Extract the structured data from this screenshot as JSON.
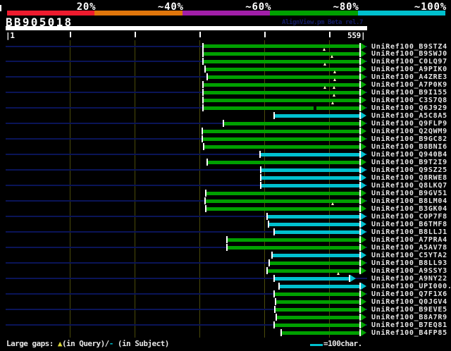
{
  "header": {
    "watermark": "AlignView.pm Beta rel.7"
  },
  "scale_legend": {
    "segments": [
      {
        "label": "20%",
        "color": "#ee1b2e"
      },
      {
        "label": "~40%",
        "color": "#e0760b"
      },
      {
        "label": "~60%",
        "color": "#a11ea8"
      },
      {
        "label": "~80%",
        "color": "#00a000"
      },
      {
        "label": "~100%",
        "color": "#00c0ce"
      }
    ]
  },
  "footer": {
    "gap_note_prefix": "Large gaps: ",
    "gap_query_symbol": "▲",
    "gap_note_mid": "(in Query)/",
    "gap_subject_symbol": "-",
    "gap_note_suffix": " (in Subject)",
    "scale_note": "=100char."
  },
  "colors": {
    "background": "#000000",
    "query_bar": "#ffffff",
    "bar_green": "#00a000",
    "bar_cyan": "#00c0ce",
    "connector_navy": "#0a1457",
    "gridline": "#4a4a0a",
    "gap_marker": "#ffffc0"
  },
  "chart_data": {
    "type": "alignment-overview",
    "query": {
      "name": "BB905018",
      "length": 559,
      "start_label": "1",
      "end_label": "559"
    },
    "ruler_tick_interval": 100,
    "identity_bins": [
      "20%",
      "~40%",
      "~60%",
      "~80%",
      "~100%"
    ],
    "hits": [
      {
        "id": "UniRef100_B9STZ4",
        "qstart": 307,
        "qend": 559,
        "bin": "~80%",
        "query_gaps": [
          493
        ],
        "subject_gaps": []
      },
      {
        "id": "UniRef100_B9SWJ0",
        "qstart": 307,
        "qend": 559,
        "bin": "~80%",
        "query_gaps": [
          505
        ],
        "subject_gaps": []
      },
      {
        "id": "UniRef100_C0LQ97",
        "qstart": 307,
        "qend": 559,
        "bin": "~80%",
        "query_gaps": [
          494
        ],
        "subject_gaps": []
      },
      {
        "id": "UniRef100_A9PIK0",
        "qstart": 310,
        "qend": 559,
        "bin": "~80%",
        "query_gaps": [
          509
        ],
        "subject_gaps": []
      },
      {
        "id": "UniRef100_A4ZRE3",
        "qstart": 313,
        "qend": 559,
        "bin": "~80%",
        "query_gaps": [
          509
        ],
        "subject_gaps": []
      },
      {
        "id": "UniRef100_A7P0K9",
        "qstart": 307,
        "qend": 559,
        "bin": "~80%",
        "query_gaps": [
          494,
          508
        ],
        "subject_gaps": []
      },
      {
        "id": "UniRef100_B9I155",
        "qstart": 307,
        "qend": 559,
        "bin": "~80%",
        "query_gaps": [
          508
        ],
        "subject_gaps": []
      },
      {
        "id": "UniRef100_C3S7Q8",
        "qstart": 307,
        "qend": 559,
        "bin": "~80%",
        "query_gaps": [
          506
        ],
        "subject_gaps": []
      },
      {
        "id": "UniRef100_Q6J929",
        "qstart": 307,
        "qend": 559,
        "bin": "~80%",
        "query_gaps": [],
        "subject_gaps": [
          478
        ]
      },
      {
        "id": "UniRef100_A5C8A5",
        "qstart": 417,
        "qend": 559,
        "bin": "~100%",
        "query_gaps": [],
        "subject_gaps": []
      },
      {
        "id": "UniRef100_Q9FLP9",
        "qstart": 338,
        "qend": 559,
        "bin": "~80%",
        "query_gaps": [],
        "subject_gaps": []
      },
      {
        "id": "UniRef100_Q2QWM9",
        "qstart": 306,
        "qend": 559,
        "bin": "~80%",
        "query_gaps": [],
        "subject_gaps": []
      },
      {
        "id": "UniRef100_B9GC82",
        "qstart": 306,
        "qend": 559,
        "bin": "~80%",
        "query_gaps": [],
        "subject_gaps": []
      },
      {
        "id": "UniRef100_B8BNI6",
        "qstart": 308,
        "qend": 559,
        "bin": "~80%",
        "query_gaps": [],
        "subject_gaps": []
      },
      {
        "id": "UniRef100_Q940B4",
        "qstart": 395,
        "qend": 559,
        "bin": "~100%",
        "query_gaps": [],
        "subject_gaps": []
      },
      {
        "id": "UniRef100_B9T2I9",
        "qstart": 313,
        "qend": 559,
        "bin": "~80%",
        "query_gaps": [],
        "subject_gaps": []
      },
      {
        "id": "UniRef100_Q9SZ25",
        "qstart": 396,
        "qend": 559,
        "bin": "~100%",
        "query_gaps": [],
        "subject_gaps": []
      },
      {
        "id": "UniRef100_Q8RWE8",
        "qstart": 396,
        "qend": 559,
        "bin": "~100%",
        "query_gaps": [],
        "subject_gaps": []
      },
      {
        "id": "UniRef100_Q8LKQ7",
        "qstart": 396,
        "qend": 559,
        "bin": "~100%",
        "query_gaps": [],
        "subject_gaps": []
      },
      {
        "id": "UniRef100_B9GV51",
        "qstart": 311,
        "qend": 559,
        "bin": "~80%",
        "query_gaps": [],
        "subject_gaps": []
      },
      {
        "id": "UniRef100_B8LM04",
        "qstart": 310,
        "qend": 559,
        "bin": "~80%",
        "query_gaps": [
          506
        ],
        "subject_gaps": []
      },
      {
        "id": "UniRef100_B3GK04",
        "qstart": 311,
        "qend": 559,
        "bin": "~80%",
        "query_gaps": [],
        "subject_gaps": []
      },
      {
        "id": "UniRef100_C0P7F8",
        "qstart": 406,
        "qend": 559,
        "bin": "~100%",
        "query_gaps": [],
        "subject_gaps": []
      },
      {
        "id": "UniRef100_B6TMF8",
        "qstart": 408,
        "qend": 559,
        "bin": "~100%",
        "query_gaps": [],
        "subject_gaps": []
      },
      {
        "id": "UniRef100_B8LLJ1",
        "qstart": 417,
        "qend": 559,
        "bin": "~100%",
        "query_gaps": [],
        "subject_gaps": []
      },
      {
        "id": "UniRef100_A7PRA4",
        "qstart": 344,
        "qend": 559,
        "bin": "~80%",
        "query_gaps": [],
        "subject_gaps": []
      },
      {
        "id": "UniRef100_A5AV78",
        "qstart": 344,
        "qend": 559,
        "bin": "~80%",
        "query_gaps": [],
        "subject_gaps": []
      },
      {
        "id": "UniRef100_C5YTA2",
        "qstart": 413,
        "qend": 559,
        "bin": "~100%",
        "query_gaps": [],
        "subject_gaps": []
      },
      {
        "id": "UniRef100_B8LL93",
        "qstart": 409,
        "qend": 559,
        "bin": "~80%",
        "query_gaps": [],
        "subject_gaps": []
      },
      {
        "id": "UniRef100_A9SSY3",
        "qstart": 406,
        "qend": 559,
        "bin": "~80%",
        "query_gaps": [
          515
        ],
        "subject_gaps": []
      },
      {
        "id": "UniRef100_A9NY22",
        "qstart": 417,
        "qend": 543,
        "bin": "~100%",
        "query_gaps": [],
        "subject_gaps": []
      },
      {
        "id": "UniRef100_UPI000..",
        "qstart": 424,
        "qend": 559,
        "bin": "~100%",
        "query_gaps": [],
        "subject_gaps": []
      },
      {
        "id": "UniRef100_Q7F1X6",
        "qstart": 417,
        "qend": 559,
        "bin": "~80%",
        "query_gaps": [],
        "subject_gaps": []
      },
      {
        "id": "UniRef100_Q0JGV4",
        "qstart": 419,
        "qend": 559,
        "bin": "~80%",
        "query_gaps": [],
        "subject_gaps": []
      },
      {
        "id": "UniRef100_B9EVE5",
        "qstart": 418,
        "qend": 559,
        "bin": "~80%",
        "query_gaps": [],
        "subject_gaps": []
      },
      {
        "id": "UniRef100_B8A7R9",
        "qstart": 420,
        "qend": 559,
        "bin": "~80%",
        "query_gaps": [],
        "subject_gaps": []
      },
      {
        "id": "UniRef100_B7EQ81",
        "qstart": 417,
        "qend": 559,
        "bin": "~80%",
        "query_gaps": [],
        "subject_gaps": []
      },
      {
        "id": "UniRef100_B4FP85",
        "qstart": 427,
        "qend": 559,
        "bin": "~80%",
        "query_gaps": [],
        "subject_gaps": []
      }
    ]
  }
}
